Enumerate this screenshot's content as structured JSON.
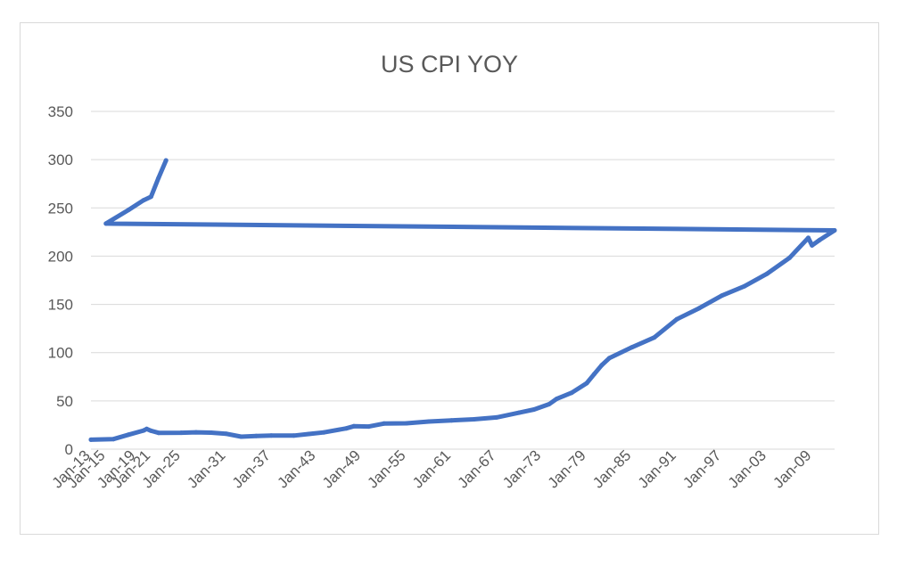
{
  "chart_data": {
    "type": "line",
    "title": "US CPI YOY",
    "xlabel": "",
    "ylabel": "",
    "ylim": [
      0,
      350
    ],
    "y_ticks": [
      0,
      50,
      100,
      150,
      200,
      250,
      300,
      350
    ],
    "x_tick_labels": [
      "Jan-13",
      "Jan-19",
      "Jan-25",
      "Jan-31",
      "Jan-37",
      "Jan-43",
      "Jan-49",
      "Jan-55",
      "Jan-61",
      "Jan-67",
      "Jan-73",
      "Jan-79",
      "Jan-85",
      "Jan-91",
      "Jan-97",
      "Jan-03",
      "Jan-09",
      "Jan-15",
      "Jan-21"
    ],
    "grid": "horizontal",
    "legend": "none",
    "series": [
      {
        "color": "#4472c4",
        "points": [
          [
            "Jan-13",
            9.8
          ],
          [
            "Jan-16",
            10.4
          ],
          [
            "Jan-18",
            15.0
          ],
          [
            "Jan-20",
            19.3
          ],
          [
            "Jun-20",
            21.0
          ],
          [
            "Jan-21",
            19.0
          ],
          [
            "Jan-22",
            16.9
          ],
          [
            "Jan-25",
            17.0
          ],
          [
            "Jan-27",
            17.5
          ],
          [
            "Jan-29",
            17.1
          ],
          [
            "Jan-31",
            16.0
          ],
          [
            "Jan-33",
            12.9
          ],
          [
            "Jan-35",
            13.7
          ],
          [
            "Jan-37",
            14.1
          ],
          [
            "Jan-40",
            14.0
          ],
          [
            "Jan-42",
            15.7
          ],
          [
            "Jan-44",
            17.4
          ],
          [
            "Jan-47",
            21.5
          ],
          [
            "Jan-48",
            23.7
          ],
          [
            "Jan-50",
            23.5
          ],
          [
            "Jan-52",
            26.5
          ],
          [
            "Jan-55",
            26.8
          ],
          [
            "Jan-58",
            28.6
          ],
          [
            "Jan-61",
            29.8
          ],
          [
            "Jan-64",
            30.9
          ],
          [
            "Jan-67",
            32.9
          ],
          [
            "Jan-70",
            37.8
          ],
          [
            "Jan-72",
            41.1
          ],
          [
            "Jan-74",
            46.6
          ],
          [
            "Jan-75",
            52.1
          ],
          [
            "Jan-77",
            58.5
          ],
          [
            "Jan-79",
            68.3
          ],
          [
            "Jan-80",
            77.8
          ],
          [
            "Jan-81",
            87.0
          ],
          [
            "Jan-82",
            94.3
          ],
          [
            "Jan-85",
            105.5
          ],
          [
            "Jan-88",
            115.7
          ],
          [
            "Jan-91",
            134.6
          ],
          [
            "Jan-94",
            146.2
          ],
          [
            "Jan-97",
            159.1
          ],
          [
            "Jan-00",
            168.8
          ],
          [
            "Jan-03",
            181.7
          ],
          [
            "Jan-06",
            198.3
          ],
          [
            "Jul-08",
            219.0
          ],
          [
            "Jan-09",
            211.1
          ],
          [
            "Jan-10",
            216.7
          ],
          [
            "Jan-12",
            226.7
          ],
          [
            "Jan-15",
            233.7
          ],
          [
            "Jan-18",
            247.9
          ],
          [
            "Jan-20",
            257.9
          ],
          [
            "Jan-21",
            261.6
          ],
          [
            "Jan-22",
            281.1
          ],
          [
            "Jan-23",
            299.2
          ]
        ]
      }
    ]
  }
}
